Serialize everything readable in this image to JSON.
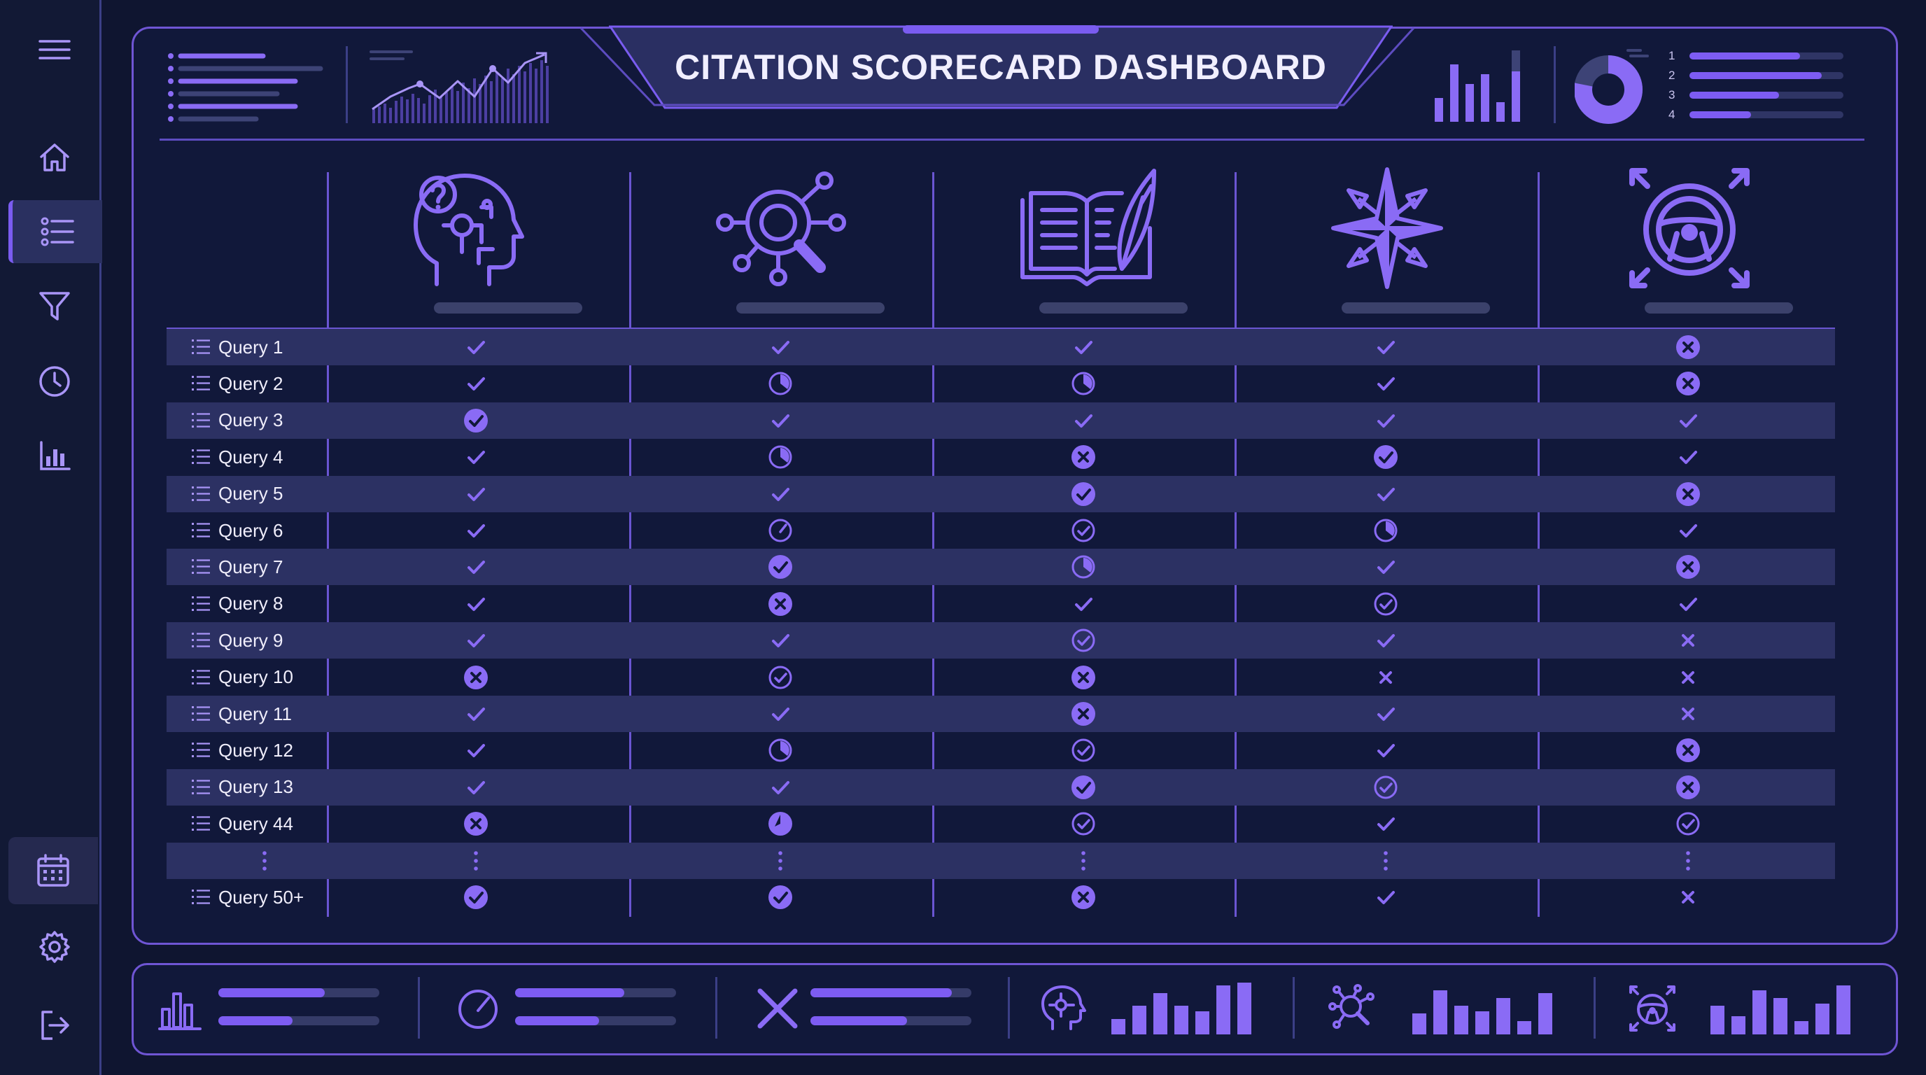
{
  "title": "CITATION SCORECARD DASHBOARD",
  "sidebar": {
    "items": [
      {
        "name": "menu-icon"
      },
      {
        "name": "home-icon"
      },
      {
        "name": "list-icon",
        "active": true
      },
      {
        "name": "filter-icon"
      },
      {
        "name": "clock-icon"
      },
      {
        "name": "bar-chart-icon"
      },
      {
        "name": "calendar-icon",
        "active": true
      },
      {
        "name": "gear-icon"
      },
      {
        "name": "logout-icon"
      }
    ]
  },
  "top_widgets": {
    "list_rank_numbers": [
      "1",
      "2",
      "3",
      "4"
    ],
    "list_fills": [
      0.72,
      0.86,
      0.58,
      0.4
    ],
    "donut_fill": 0.78
  },
  "columns": [
    {
      "icon": "brain-question-icon"
    },
    {
      "icon": "search-network-icon"
    },
    {
      "icon": "book-quill-icon"
    },
    {
      "icon": "compass-star-icon"
    },
    {
      "icon": "steering-wheel-icon"
    }
  ],
  "rows": [
    {
      "label": "Query 1",
      "cells": [
        "check",
        "check",
        "check",
        "check",
        "x-circle"
      ]
    },
    {
      "label": "Query 2",
      "cells": [
        "check",
        "partial",
        "partial",
        "check",
        "x-circle"
      ]
    },
    {
      "label": "Query 3",
      "cells": [
        "check-filled",
        "check",
        "check",
        "check",
        "check"
      ]
    },
    {
      "label": "Query 4",
      "cells": [
        "check",
        "partial",
        "x-circle",
        "check-filled",
        "check"
      ]
    },
    {
      "label": "Query 5",
      "cells": [
        "check",
        "check",
        "check-filled",
        "check",
        "x-circle"
      ]
    },
    {
      "label": "Query 6",
      "cells": [
        "check",
        "gauge",
        "check-outline",
        "partial",
        "check"
      ]
    },
    {
      "label": "Query 7",
      "cells": [
        "check",
        "check-filled",
        "partial",
        "check",
        "x-circle"
      ]
    },
    {
      "label": "Query 8",
      "cells": [
        "check",
        "x-circle",
        "check",
        "check-outline",
        "check"
      ]
    },
    {
      "label": "Query 9",
      "cells": [
        "check",
        "check",
        "check-outline",
        "check",
        "x"
      ]
    },
    {
      "label": "Query 10",
      "cells": [
        "x-circle",
        "check-outline",
        "x-circle",
        "x",
        "x"
      ]
    },
    {
      "label": "Query 11",
      "cells": [
        "check",
        "check",
        "x-circle",
        "check",
        "x"
      ]
    },
    {
      "label": "Query 12",
      "cells": [
        "check",
        "partial",
        "check-outline",
        "check",
        "x-circle"
      ]
    },
    {
      "label": "Query 13",
      "cells": [
        "check",
        "check",
        "check-filled",
        "check-outline",
        "x-circle"
      ]
    },
    {
      "label": "Query 44",
      "cells": [
        "x-circle",
        "partial-filled",
        "check-outline",
        "check",
        "check-outline"
      ]
    },
    {
      "label": "",
      "cells": [
        "dots",
        "dots",
        "dots",
        "dots",
        "dots"
      ]
    },
    {
      "label": "Query 50+",
      "cells": [
        "check-filled",
        "check-filled",
        "x-circle",
        "check",
        "x"
      ]
    }
  ],
  "bottom_stats": [
    {
      "icon": "bar-chart-icon",
      "bars": [
        0.66,
        0.46
      ]
    },
    {
      "icon": "gauge-icon",
      "bars": [
        0.68,
        0.52
      ]
    },
    {
      "icon": "x-icon",
      "bars": [
        0.88,
        0.6
      ]
    },
    {
      "icon": "brain-icon",
      "mini_bars": [
        0.3,
        0.55,
        0.8,
        0.55,
        0.45,
        0.95,
        1.0
      ]
    },
    {
      "icon": "search-network-icon",
      "mini_bars": [
        0.4,
        0.85,
        0.55,
        0.45,
        0.7,
        0.25,
        0.8
      ]
    },
    {
      "icon": "steering-wheel-icon",
      "mini_bars": [
        0.55,
        0.35,
        0.85,
        0.7,
        0.25,
        0.6,
        0.95
      ]
    }
  ]
}
